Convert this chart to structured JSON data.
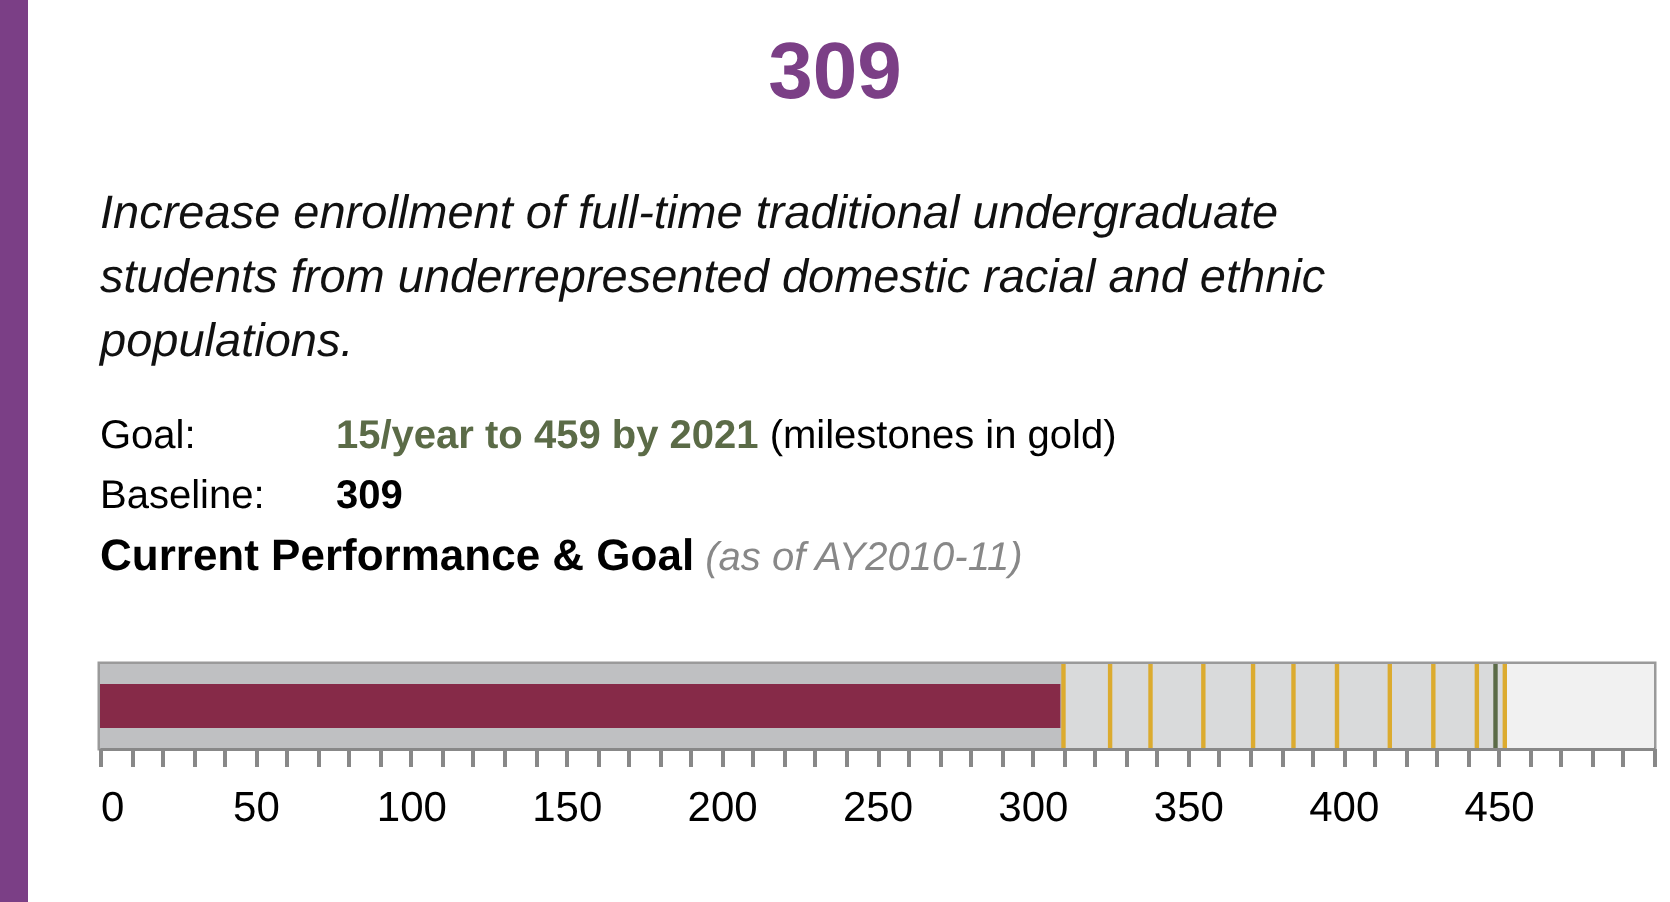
{
  "chart_data": {
    "type": "bar",
    "orientation": "horizontal",
    "title": "309",
    "subtitle": "Increase enrollment of full-time traditional undergraduate students from underrepresented domestic racial and ethnic populations.",
    "annotations": [
      "Goal: 15/year to 459 by 2021 (milestones in gold)",
      "Baseline: 309",
      "Current Performance & Goal (as of AY2010-11)"
    ],
    "categories": [
      null
    ],
    "values": [
      309
    ],
    "color": "#862a48",
    "xlim": [
      0,
      500
    ],
    "xticks": [
      0,
      {
        "value": 10,
        "label": null
      },
      {
        "value": 20,
        "label": null
      },
      {
        "value": 30,
        "label": null
      },
      {
        "value": 40,
        "label": null
      },
      50,
      {
        "value": 60,
        "label": null
      },
      {
        "value": 70,
        "label": null
      },
      {
        "value": 80,
        "label": null
      },
      {
        "value": 90,
        "label": null
      },
      100,
      {
        "value": 110,
        "label": null
      },
      {
        "value": 120,
        "label": null
      },
      {
        "value": 130,
        "label": null
      },
      {
        "value": 140,
        "label": null
      },
      150,
      {
        "value": 160,
        "label": null
      },
      {
        "value": 170,
        "label": null
      },
      {
        "value": 180,
        "label": null
      },
      {
        "value": 190,
        "label": null
      },
      200,
      {
        "value": 210,
        "label": null
      },
      {
        "value": 220,
        "label": null
      },
      {
        "value": 230,
        "label": null
      },
      {
        "value": 240,
        "label": null
      },
      250,
      {
        "value": 260,
        "label": null
      },
      {
        "value": 270,
        "label": null
      },
      {
        "value": 280,
        "label": null
      },
      {
        "value": 290,
        "label": null
      },
      300,
      {
        "value": 310,
        "label": null
      },
      {
        "value": 320,
        "label": null
      },
      {
        "value": 330,
        "label": null
      },
      {
        "value": 340,
        "label": null
      },
      350,
      {
        "value": 360,
        "label": null
      },
      {
        "value": 370,
        "label": null
      },
      {
        "value": 380,
        "label": null
      },
      {
        "value": 390,
        "label": null
      },
      400,
      {
        "value": 410,
        "label": null
      },
      {
        "value": 420,
        "label": null
      },
      {
        "value": 430,
        "label": null
      },
      {
        "value": 440,
        "label": null
      },
      450,
      {
        "value": 460,
        "label": null
      },
      {
        "value": 470,
        "label": null
      },
      {
        "value": 480,
        "label": null
      },
      {
        "value": 490,
        "label": null
      },
      {
        "value": 500,
        "label": null
      }
    ],
    "bands": [
      {
        "axis": "x",
        "from": 0,
        "to": 310,
        "color": "#bfc0c2"
      },
      {
        "axis": "x",
        "from": 310,
        "to": 452,
        "color": "#d9dadb"
      },
      {
        "axis": "x",
        "from": 452,
        "to": 500,
        "color": "#f1f1f1"
      }
    ],
    "ref_lines": [
      {
        "axis": "x",
        "value": 310,
        "color": "#dcab2f"
      },
      {
        "axis": "x",
        "value": 325,
        "color": "#dcab2f"
      },
      {
        "axis": "x",
        "value": 338,
        "color": "#dcab2f"
      },
      {
        "axis": "x",
        "value": 355,
        "color": "#dcab2f"
      },
      {
        "axis": "x",
        "value": 371,
        "color": "#dcab2f"
      },
      {
        "axis": "x",
        "value": 384,
        "color": "#dcab2f"
      },
      {
        "axis": "x",
        "value": 398,
        "color": "#dcab2f"
      },
      {
        "axis": "x",
        "value": 415,
        "color": "#dcab2f"
      },
      {
        "axis": "x",
        "value": 429,
        "color": "#dcab2f"
      },
      {
        "axis": "x",
        "value": 443,
        "color": "#dcab2f"
      },
      {
        "axis": "x",
        "value": 449,
        "color": "#5b6b47"
      },
      {
        "axis": "x",
        "value": 452,
        "color": "#dcab2f"
      }
    ],
    "grid": false
  }
}
